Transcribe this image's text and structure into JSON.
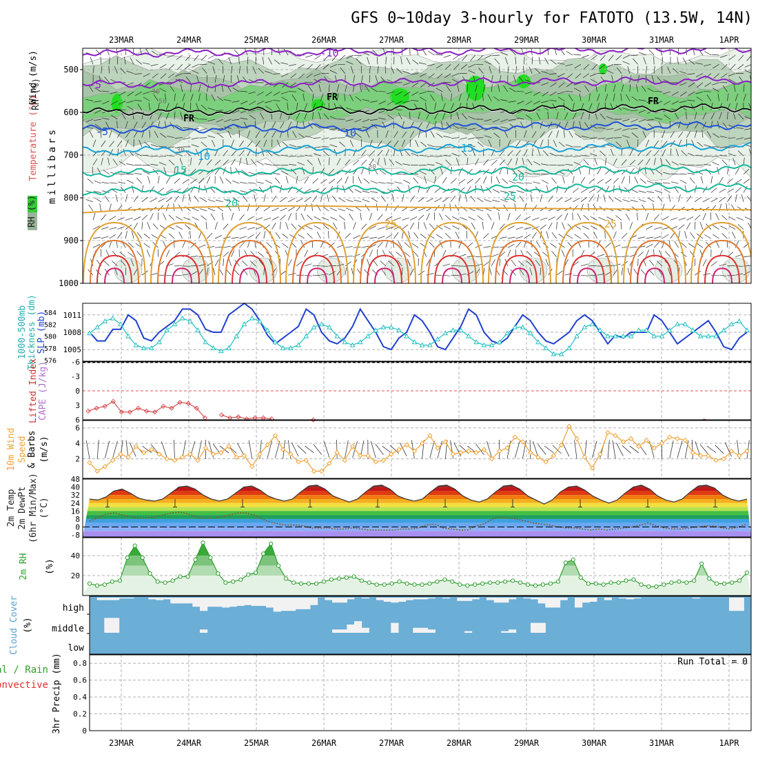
{
  "title": "GFS 0~10day 3-hourly for FATOTO (13.5W, 14N)",
  "dates": [
    "23MAR",
    "24MAR",
    "25MAR",
    "26MAR",
    "27MAR",
    "28MAR",
    "29MAR",
    "30MAR",
    "31MAR",
    "1APR"
  ],
  "colors": {
    "frame": "#000000",
    "grid": "#b0b0b0",
    "temp_cold": "#8a1fc4",
    "temp_blue": "#1f52d6",
    "temp_cyan": "#17a2d8",
    "temp_teal": "#18b89a",
    "temp_orange": "#e0a030",
    "temp_red": "#e03030",
    "rh_green": "#3cc43c",
    "slp": "#1f3fcf",
    "thickness": "#20c0c0",
    "lifted": "#d03030",
    "wind10": "#f0a030",
    "rh2m": "#2e9e2e",
    "cloud": "#6baed6",
    "cloud_gap": "#f2f2f2"
  },
  "chart_data": [
    {
      "type": "contour",
      "panel": "upper-air",
      "ylabel_parts": [
        "RH (%)",
        "Temperature (°C)",
        "Wind (m/s)"
      ],
      "yaxis_title": "millibars",
      "ylim": [
        450,
        1000
      ],
      "yticks": [
        500,
        600,
        700,
        800,
        900,
        1000
      ],
      "freezing_label": "FR",
      "isotherm_labels": [
        "-10",
        "-5",
        "-5",
        "10",
        "10",
        "15",
        "15",
        "20",
        "20",
        "25",
        "25"
      ],
      "rh_labels": [
        "30",
        "50",
        "30",
        "30",
        "30"
      ],
      "isotherm_levels_mb": {
        "-10": 462,
        "-5": 535,
        "0": 600,
        "5": 640,
        "10": 690,
        "15": 742,
        "20": 785
      }
    },
    {
      "type": "line",
      "panel": "slp-thickness",
      "ylabel_parts": [
        "1000-500mb",
        "Thickness (dm)",
        "SLP (mb)"
      ],
      "slp_ticks": [
        "1011",
        "1008",
        "1005"
      ],
      "thickness_ticks": [
        "584",
        "582",
        "580",
        "578",
        "576"
      ],
      "slp_range": [
        1003,
        1013
      ],
      "series": [
        {
          "name": "SLP (mb)",
          "values": [
            1008,
            1006.5,
            1006.5,
            1008.5,
            1008.5,
            1011,
            1010,
            1007,
            1006.5,
            1008,
            1009,
            1010,
            1012,
            1012,
            1011,
            1008.5,
            1008,
            1008,
            1011,
            1012,
            1013,
            1012,
            1010,
            1007.5,
            1006,
            1007,
            1008,
            1009,
            1012,
            1011,
            1008,
            1006.5,
            1006,
            1007,
            1009,
            1012,
            1010,
            1008,
            1005.5,
            1005,
            1007,
            1008,
            1011,
            1010,
            1008,
            1005.5,
            1005,
            1007,
            1009,
            1012,
            1011,
            1008,
            1006.5,
            1006,
            1007,
            1009,
            1011,
            1010,
            1008,
            1006.5,
            1006,
            1007,
            1008,
            1010,
            1011,
            1010,
            1008,
            1006,
            1007.5,
            1007,
            1008,
            1008,
            1008,
            1011,
            1010,
            1008,
            1006,
            1007,
            1008,
            1009,
            1010,
            1008,
            1005.5,
            1005,
            1007,
            1008
          ]
        },
        {
          "name": "1000-500mb Thickness (dm)",
          "values": [
            580.5,
            581.5,
            582.5,
            583,
            582,
            580,
            578.5,
            578,
            578,
            579,
            581,
            582,
            583,
            582.5,
            581,
            579,
            578,
            577.5,
            578,
            580,
            582,
            583,
            582.5,
            581,
            579,
            578,
            578,
            578.5,
            580,
            581.5,
            582,
            581.5,
            580,
            579,
            578.5,
            579,
            580,
            581,
            581.5,
            581.5,
            581,
            580,
            579,
            578.5,
            578.5,
            579.5,
            580.5,
            581,
            581,
            580,
            579,
            578.5,
            578.5,
            579,
            580.5,
            581.5,
            581.5,
            580.5,
            579,
            578,
            577,
            577,
            578,
            580,
            581.5,
            582,
            581,
            580,
            580,
            580,
            580,
            581,
            581,
            580,
            580,
            581,
            582,
            582,
            581,
            580,
            580,
            580,
            581,
            582,
            582.5,
            581
          ]
        }
      ]
    },
    {
      "type": "line",
      "panel": "lifted-index",
      "ylabel_parts": [
        "Lifted Index",
        "CAPE (J/kg)"
      ],
      "yticks": [
        "-6",
        "-3",
        "0",
        "3",
        "6"
      ],
      "ylim": [
        -6,
        6
      ],
      "series": [
        {
          "name": "Lifted Index",
          "values": [
            4.2,
            3.6,
            3.2,
            2.2,
            4.4,
            4.4,
            3.6,
            4.2,
            4.4,
            3.2,
            3.6,
            2.4,
            2.6,
            3.6,
            5.6,
            null,
            5.0,
            5.6,
            5.4,
            5.8,
            5.6,
            5.6,
            5.8,
            null,
            null,
            null,
            null,
            6,
            null,
            null
          ]
        }
      ]
    },
    {
      "type": "line",
      "panel": "wind10m",
      "ylabel_parts": [
        "10m Wind",
        "Speed",
        "& Barbs",
        "(m/s)"
      ],
      "yticks": [
        "6",
        "4",
        "2"
      ],
      "ylim": [
        0,
        6.6
      ],
      "series": [
        {
          "name": "10m Wind Speed (m/s)",
          "values": [
            1.5,
            0.4,
            1,
            1.8,
            2.6,
            2.2,
            3.6,
            2.8,
            3.2,
            2.6,
            2,
            1.8,
            2.2,
            2.6,
            1.8,
            3.4,
            2.6,
            2.8,
            3.6,
            2.2,
            2.4,
            1,
            2.6,
            3.8,
            5,
            3.2,
            2.6,
            1.6,
            1.8,
            0.4,
            0.4,
            1.4,
            2.8,
            1.8,
            3.6,
            2.4,
            2.4,
            1.6,
            1.8,
            2.6,
            3.2,
            3.8,
            3,
            4,
            5,
            3.4,
            4.2,
            2.6,
            2.8,
            3,
            2.8,
            3.2,
            2,
            3,
            3.4,
            4.8,
            4.2,
            2.8,
            2.2,
            1.6,
            2.4,
            3.8,
            6.2,
            4.6,
            2.2,
            0.8,
            2.6,
            5.4,
            5,
            4.2,
            4.6,
            3.6,
            4.4,
            3.4,
            4,
            4.8,
            4.6,
            4.4,
            2.8,
            2.4,
            2.4,
            1.8,
            2,
            3,
            2.4,
            3
          ]
        }
      ]
    },
    {
      "type": "area",
      "panel": "temp2m",
      "ylabel_parts": [
        "2m Temp",
        "2m DewPt",
        "(6hr Min/Max)",
        "(°C)"
      ],
      "yticks": [
        "48",
        "40",
        "32",
        "24",
        "16",
        "8",
        "0",
        "-8"
      ],
      "ylim": [
        -10,
        48
      ],
      "series": [
        {
          "name": "2m Temp (°C)",
          "values": [
            28,
            27,
            30,
            36,
            38,
            34,
            29,
            27,
            26,
            28,
            34,
            40,
            41,
            38,
            32,
            28,
            26,
            28,
            34,
            40,
            41,
            37,
            31,
            28,
            26,
            28,
            35,
            41,
            42,
            38,
            31,
            28,
            25,
            28,
            35,
            41,
            42,
            38,
            31,
            28,
            26,
            28,
            35,
            41,
            42,
            38,
            31,
            27,
            25,
            28,
            35,
            41,
            42,
            38,
            31,
            27,
            23,
            27,
            35,
            40,
            41,
            37,
            31,
            27,
            24,
            27,
            34,
            40,
            42,
            38,
            31,
            27,
            25,
            28,
            35,
            41,
            42,
            39,
            32,
            28,
            26,
            28
          ]
        },
        {
          "name": "2m DewPt (°C)",
          "values": [
            6,
            9,
            13,
            14,
            12,
            10,
            9,
            9,
            10,
            12,
            14,
            15,
            13,
            10,
            9,
            9,
            10,
            12,
            14,
            14,
            12,
            8,
            5,
            3,
            2,
            2,
            1,
            -1,
            -1,
            -1,
            -2,
            -2,
            -1,
            -2,
            -3,
            -3,
            -3,
            -3,
            -2,
            -2,
            -1,
            2,
            3,
            -1,
            -2,
            -3,
            -3,
            1,
            3,
            8,
            10,
            9,
            8,
            6,
            4,
            3,
            2,
            0,
            -1,
            -1,
            -2,
            -3,
            -2,
            -3,
            -2,
            -1,
            0,
            2,
            4,
            1,
            -1,
            -2,
            -2,
            -1,
            0,
            1,
            1,
            -1,
            -2,
            0,
            3
          ]
        }
      ]
    },
    {
      "type": "area",
      "panel": "rh2m",
      "ylabel_parts": [
        "2m RH",
        "(%)"
      ],
      "yticks": [
        "40",
        "20"
      ],
      "ylim": [
        0,
        58
      ],
      "series": [
        {
          "name": "2m RH (%)",
          "values": [
            12,
            10,
            11,
            14,
            15,
            38,
            50,
            38,
            22,
            14,
            13,
            15,
            19,
            19,
            36,
            53,
            38,
            22,
            13,
            14,
            16,
            21,
            23,
            42,
            52,
            30,
            17,
            13,
            12,
            12,
            12,
            14,
            16,
            17,
            18,
            19,
            15,
            13,
            11,
            11,
            12,
            14,
            12,
            11,
            11,
            12,
            14,
            16,
            14,
            11,
            10,
            11,
            12,
            13,
            13,
            14,
            15,
            13,
            11,
            10,
            11,
            12,
            14,
            33,
            36,
            18,
            12,
            12,
            11,
            13,
            13,
            15,
            16,
            11,
            9,
            9,
            11,
            13,
            14,
            13,
            15,
            32,
            17,
            12,
            12,
            13,
            15,
            23
          ]
        }
      ]
    },
    {
      "type": "heatmap",
      "panel": "cloud-cover",
      "ylabel_parts": [
        "Cloud Cover",
        "(%)"
      ],
      "rows": [
        "high",
        "middle",
        "low"
      ],
      "high_clear_fraction": [
        0,
        0.15,
        0.15,
        0.15,
        0.05,
        0.05,
        0,
        0,
        0.1,
        0.15,
        0.1,
        0.35,
        0.35,
        0.35,
        0.55,
        0.8,
        0.55,
        0.55,
        0.6,
        0.55,
        0.5,
        0.45,
        0.5,
        0.5,
        0.6,
        0.85,
        0.8,
        0.8,
        0.7,
        0.7,
        0.45,
        0,
        0.15,
        0.3,
        0.3,
        0.1,
        0,
        0.05,
        0,
        0.15,
        0.25,
        0.3,
        0.25,
        0.15,
        0.1,
        0.1,
        0.05,
        0,
        0.05,
        0,
        0.2,
        0.2,
        0.1,
        0,
        0.15,
        0.3,
        0.3,
        0.1,
        0,
        0.05,
        0.1,
        0.35,
        0.6,
        0.6,
        0.15,
        0,
        0.6,
        0.3,
        0.25,
        0,
        0.15,
        0,
        0.05,
        0.1,
        0.05,
        0,
        0,
        0,
        0,
        0,
        0,
        0,
        0.05,
        0,
        0,
        0,
        0,
        0.8,
        0.8,
        0
      ],
      "middle_clear_fraction": [
        0,
        0,
        0.9,
        0.9,
        0,
        0,
        0,
        0,
        0,
        0,
        0,
        0,
        0,
        0,
        0,
        0.2,
        0,
        0,
        0,
        0,
        0,
        0,
        0,
        0,
        0,
        0,
        0,
        0,
        0,
        0,
        0,
        0,
        0,
        0.2,
        0.2,
        0.5,
        0.7,
        0.3,
        0,
        0,
        0,
        0.6,
        0,
        0,
        0.3,
        0.3,
        0.2,
        0,
        0,
        0,
        0,
        0.1,
        0,
        0,
        0,
        0,
        0.1,
        0.2,
        0,
        0,
        0.6,
        0.6,
        0,
        0,
        0,
        0,
        0,
        0,
        0,
        0,
        0,
        0,
        0,
        0,
        0,
        0,
        0,
        0,
        0,
        0,
        0,
        0,
        0,
        0,
        0,
        0
      ]
    },
    {
      "type": "bar",
      "panel": "precip",
      "ylabel_parts": [
        "Total / Rain",
        "Convective",
        "3hr Precip (mm)"
      ],
      "run_total_label": "Run Total = 0",
      "yticks": [
        "0.8",
        "0.6",
        "0.4",
        "0.2",
        "0"
      ],
      "ylim": [
        0,
        0.9
      ],
      "values": []
    }
  ]
}
